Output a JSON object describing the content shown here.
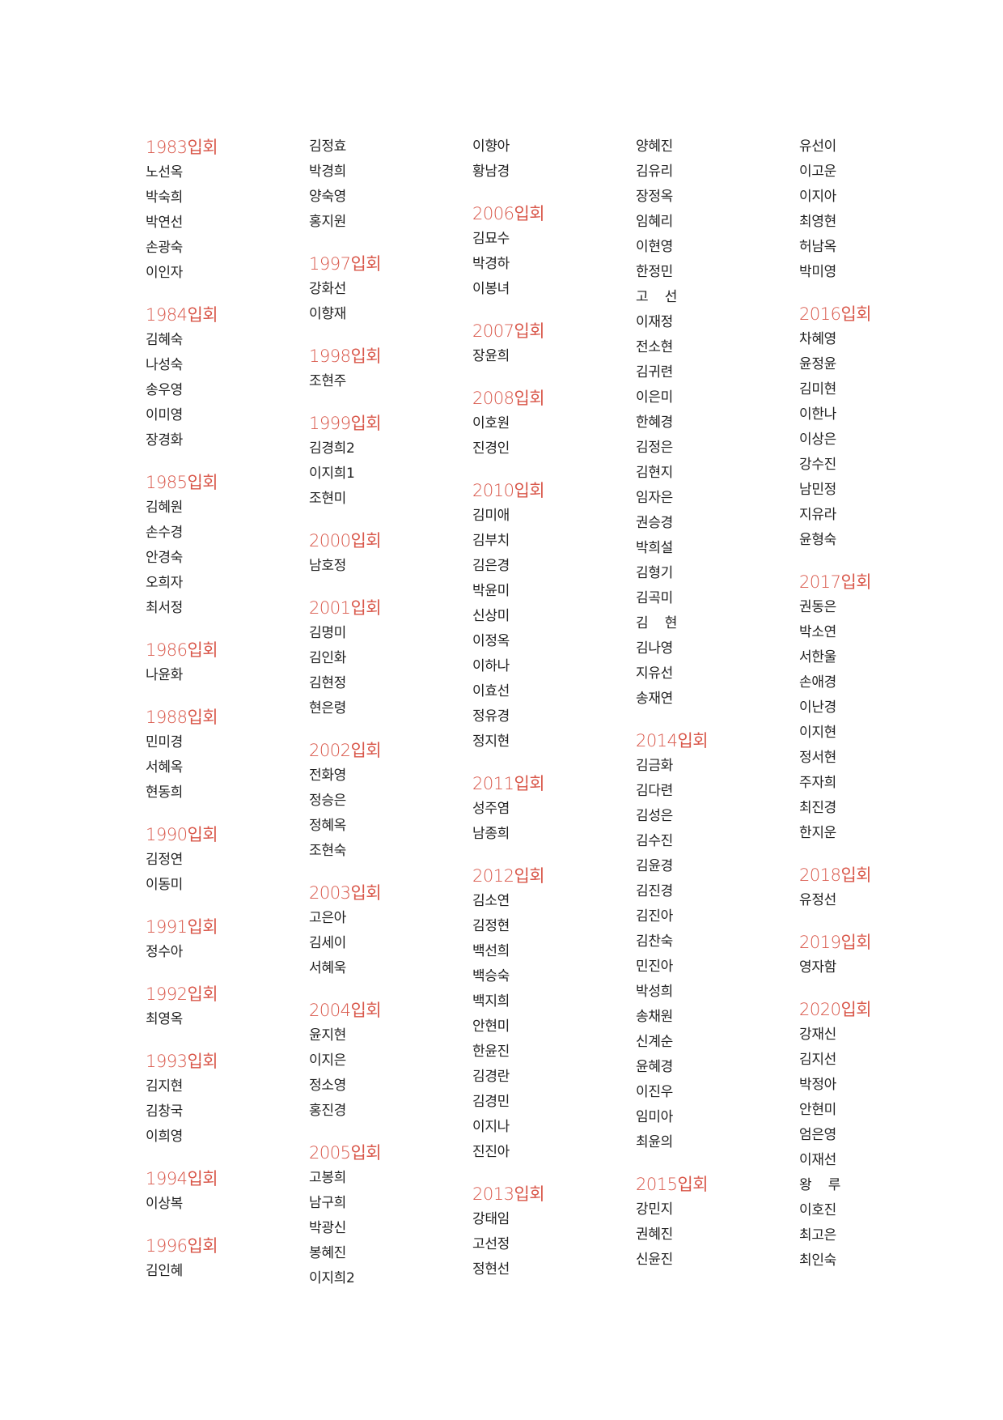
{
  "columns": [
    [
      {
        "year": "1983입회",
        "names": [
          "노선옥",
          "박숙희",
          "박연선",
          "손광숙",
          "이인자"
        ]
      },
      {
        "year": "1984입회",
        "names": [
          "김혜숙",
          "나성숙",
          "송우영",
          "이미영",
          "장경화"
        ]
      },
      {
        "year": "1985입회",
        "names": [
          "김혜원",
          "손수경",
          "안경숙",
          "오희자",
          "최서정"
        ]
      },
      {
        "year": "1986입회",
        "names": [
          "나윤화"
        ]
      },
      {
        "year": "1988입회",
        "names": [
          "민미경",
          "서혜옥",
          "현동희"
        ]
      },
      {
        "year": "1990입회",
        "names": [
          "김정연",
          "이동미"
        ]
      },
      {
        "year": "1991입회",
        "names": [
          "정수아"
        ]
      },
      {
        "year": "1992입회",
        "names": [
          "최영옥"
        ]
      },
      {
        "year": "1993입회",
        "names": [
          "김지현",
          "김창국",
          "이희영"
        ]
      },
      {
        "year": "1994입회",
        "names": [
          "이상복"
        ]
      },
      {
        "year": "1996입회",
        "names": [
          "김인혜"
        ]
      }
    ],
    [
      {
        "year": "",
        "names": [
          "김정효",
          "박경희",
          "양숙영",
          "홍지원"
        ]
      },
      {
        "year": "1997입회",
        "names": [
          "강화선",
          "이향재"
        ]
      },
      {
        "year": "1998입회",
        "names": [
          "조현주"
        ]
      },
      {
        "year": "1999입회",
        "names": [
          "김경희2",
          "이지희1",
          "조현미"
        ]
      },
      {
        "year": "2000입회",
        "names": [
          "남호정"
        ]
      },
      {
        "year": "2001입회",
        "names": [
          "김명미",
          "김인화",
          "김현정",
          "현은령"
        ]
      },
      {
        "year": "2002입회",
        "names": [
          "전화영",
          "정승은",
          "정혜옥",
          "조현숙"
        ]
      },
      {
        "year": "2003입회",
        "names": [
          "고은아",
          "김세이",
          "서혜욱"
        ]
      },
      {
        "year": "2004입회",
        "names": [
          "윤지현",
          "이지은",
          "정소영",
          "홍진경"
        ]
      },
      {
        "year": "2005입회",
        "names": [
          "고봉희",
          "남구희",
          "박광신",
          "봉혜진",
          "이지희2"
        ]
      }
    ],
    [
      {
        "year": "",
        "names": [
          "이향아",
          "황남경"
        ]
      },
      {
        "year": "2006입회",
        "names": [
          "김묘수",
          "박경하",
          "이봉녀"
        ]
      },
      {
        "year": "2007입회",
        "names": [
          "장윤희"
        ]
      },
      {
        "year": "2008입회",
        "names": [
          "이호원",
          "진경인"
        ]
      },
      {
        "year": "2010입회",
        "names": [
          "김미애",
          "김부치",
          "김은경",
          "박윤미",
          "신상미",
          "이정옥",
          "이하나",
          "이효선",
          "정유경",
          "정지현"
        ]
      },
      {
        "year": "2011입회",
        "names": [
          "성주염",
          "남종희"
        ]
      },
      {
        "year": "2012입회",
        "names": [
          "김소연",
          "김정현",
          "백선희",
          "백승숙",
          "백지희",
          "안현미",
          "한윤진",
          "김경란",
          "김경민",
          "이지나",
          "진진아"
        ]
      },
      {
        "year": "2013입회",
        "names": [
          "강태임",
          "고선정",
          "정현선"
        ]
      }
    ],
    [
      {
        "year": "",
        "names": [
          "양혜진",
          "김유리",
          "장정옥",
          "임혜리",
          "이현영",
          "한정민",
          "고    선",
          "이재정",
          "전소현",
          "김귀련",
          "이은미",
          "한혜경",
          "김정은",
          "김현지",
          "임자은",
          "권승경",
          "박희설",
          "김형기",
          "김곡미",
          "김    현",
          "김나영",
          "지유선",
          "송재연"
        ]
      },
      {
        "year": "2014입회",
        "names": [
          "김금화",
          "김다련",
          "김성은",
          "김수진",
          "김윤경",
          "김진경",
          "김진아",
          "김찬숙",
          "민진아",
          "박성희",
          "송채원",
          "신계순",
          "윤혜경",
          "이진우",
          "임미아",
          "최윤의"
        ]
      },
      {
        "year": "2015입회",
        "names": [
          "강민지",
          "권혜진",
          "신윤진"
        ]
      }
    ],
    [
      {
        "year": "",
        "names": [
          "유선이",
          "이고운",
          "이지아",
          "최영현",
          "허남옥",
          "박미영"
        ]
      },
      {
        "year": "2016입회",
        "names": [
          "차혜영",
          "윤정윤",
          "김미현",
          "이한나",
          "이상은",
          "강수진",
          "남민정",
          "지유라",
          "윤형숙"
        ]
      },
      {
        "year": "2017입회",
        "names": [
          "권동은",
          "박소연",
          "서한울",
          "손애경",
          "이난경",
          "이지현",
          "정서현",
          "주자희",
          "최진경",
          "한지운"
        ]
      },
      {
        "year": "2018입회",
        "names": [
          "유정선"
        ]
      },
      {
        "year": "2019입회",
        "names": [
          "영자함"
        ]
      },
      {
        "year": "2020입회",
        "names": [
          "강재신",
          "김지선",
          "박정아",
          "안현미",
          "엄은영",
          "이재선",
          "왕    루",
          "이호진",
          "최고은",
          "최인숙"
        ]
      }
    ]
  ]
}
